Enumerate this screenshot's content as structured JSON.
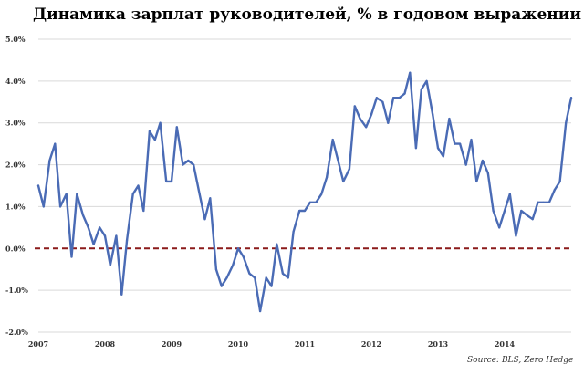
{
  "chart_data": {
    "type": "line",
    "title": "Динамика зарплат руководителей, % в годовом выражении",
    "source": "Source: BLS, Zero Hedge",
    "xlabel": "",
    "ylabel": "",
    "xlim": [
      2007.0,
      2015.0
    ],
    "ylim": [
      -2.0,
      5.0
    ],
    "y_ticks": [
      {
        "value": 5.0,
        "label": "5.0%"
      },
      {
        "value": 4.0,
        "label": "4.0%"
      },
      {
        "value": 3.0,
        "label": "3.0%"
      },
      {
        "value": 2.0,
        "label": "2.0%"
      },
      {
        "value": 1.0,
        "label": "1.0%"
      },
      {
        "value": 0.0,
        "label": "0.0%"
      },
      {
        "value": -1.0,
        "label": "-1.0%"
      },
      {
        "value": -2.0,
        "label": "-2.0%"
      }
    ],
    "x_ticks": [
      {
        "value": 2007,
        "label": "2007"
      },
      {
        "value": 2008,
        "label": "2008"
      },
      {
        "value": 2009,
        "label": "2009"
      },
      {
        "value": 2010,
        "label": "2010"
      },
      {
        "value": 2011,
        "label": "2011"
      },
      {
        "value": 2012,
        "label": "2012"
      },
      {
        "value": 2013,
        "label": "2013"
      },
      {
        "value": 2014,
        "label": "2014"
      }
    ],
    "grid": "horizontal",
    "reference_line": {
      "value": 0.0,
      "color": "#8b1a1a",
      "style": "dashed"
    },
    "colors": {
      "line": "#4a6bb5",
      "grid": "#d9d9d9",
      "axis_text": "#333333"
    },
    "series": [
      {
        "points": [
          [
            2007.0,
            1.5
          ],
          [
            2007.08,
            1.0
          ],
          [
            2007.17,
            2.1
          ],
          [
            2007.25,
            2.5
          ],
          [
            2007.33,
            1.0
          ],
          [
            2007.42,
            1.3
          ],
          [
            2007.5,
            -0.2
          ],
          [
            2007.58,
            1.3
          ],
          [
            2007.67,
            0.8
          ],
          [
            2007.75,
            0.5
          ],
          [
            2007.83,
            0.1
          ],
          [
            2007.92,
            0.5
          ],
          [
            2008.0,
            0.3
          ],
          [
            2008.08,
            -0.4
          ],
          [
            2008.17,
            0.3
          ],
          [
            2008.25,
            -1.1
          ],
          [
            2008.33,
            0.2
          ],
          [
            2008.42,
            1.3
          ],
          [
            2008.5,
            1.5
          ],
          [
            2008.58,
            0.9
          ],
          [
            2008.67,
            2.8
          ],
          [
            2008.75,
            2.6
          ],
          [
            2008.83,
            3.0
          ],
          [
            2008.92,
            1.6
          ],
          [
            2009.0,
            1.6
          ],
          [
            2009.08,
            2.9
          ],
          [
            2009.17,
            2.0
          ],
          [
            2009.25,
            2.1
          ],
          [
            2009.33,
            2.0
          ],
          [
            2009.42,
            1.3
          ],
          [
            2009.5,
            0.7
          ],
          [
            2009.58,
            1.2
          ],
          [
            2009.67,
            -0.5
          ],
          [
            2009.75,
            -0.9
          ],
          [
            2009.83,
            -0.7
          ],
          [
            2009.92,
            -0.4
          ],
          [
            2010.0,
            0.0
          ],
          [
            2010.08,
            -0.2
          ],
          [
            2010.17,
            -0.6
          ],
          [
            2010.25,
            -0.7
          ],
          [
            2010.33,
            -1.5
          ],
          [
            2010.42,
            -0.7
          ],
          [
            2010.5,
            -0.9
          ],
          [
            2010.58,
            0.1
          ],
          [
            2010.67,
            -0.6
          ],
          [
            2010.75,
            -0.7
          ],
          [
            2010.83,
            0.4
          ],
          [
            2010.92,
            0.9
          ],
          [
            2011.0,
            0.9
          ],
          [
            2011.08,
            1.1
          ],
          [
            2011.17,
            1.1
          ],
          [
            2011.25,
            1.3
          ],
          [
            2011.33,
            1.7
          ],
          [
            2011.42,
            2.6
          ],
          [
            2011.5,
            2.1
          ],
          [
            2011.58,
            1.6
          ],
          [
            2011.67,
            1.9
          ],
          [
            2011.75,
            3.4
          ],
          [
            2011.83,
            3.1
          ],
          [
            2011.92,
            2.9
          ],
          [
            2012.0,
            3.2
          ],
          [
            2012.08,
            3.6
          ],
          [
            2012.17,
            3.5
          ],
          [
            2012.25,
            3.0
          ],
          [
            2012.33,
            3.6
          ],
          [
            2012.42,
            3.6
          ],
          [
            2012.5,
            3.7
          ],
          [
            2012.58,
            4.2
          ],
          [
            2012.67,
            2.4
          ],
          [
            2012.75,
            3.8
          ],
          [
            2012.83,
            4.0
          ],
          [
            2012.92,
            3.2
          ],
          [
            2013.0,
            2.4
          ],
          [
            2013.08,
            2.2
          ],
          [
            2013.17,
            3.1
          ],
          [
            2013.25,
            2.5
          ],
          [
            2013.33,
            2.5
          ],
          [
            2013.42,
            2.0
          ],
          [
            2013.5,
            2.6
          ],
          [
            2013.58,
            1.6
          ],
          [
            2013.67,
            2.1
          ],
          [
            2013.75,
            1.8
          ],
          [
            2013.83,
            0.9
          ],
          [
            2013.92,
            0.5
          ],
          [
            2014.0,
            0.9
          ],
          [
            2014.08,
            1.3
          ],
          [
            2014.17,
            0.3
          ],
          [
            2014.25,
            0.9
          ],
          [
            2014.33,
            0.8
          ],
          [
            2014.42,
            0.7
          ],
          [
            2014.5,
            1.1
          ],
          [
            2014.58,
            1.1
          ],
          [
            2014.67,
            1.1
          ],
          [
            2014.75,
            1.4
          ],
          [
            2014.83,
            1.6
          ],
          [
            2014.92,
            3.0
          ],
          [
            2015.0,
            3.6
          ]
        ]
      }
    ]
  }
}
